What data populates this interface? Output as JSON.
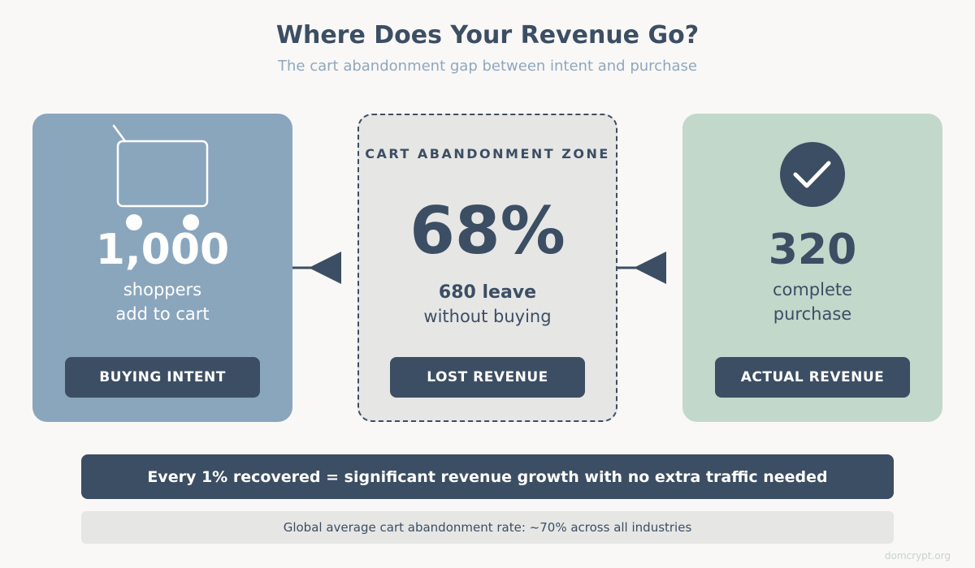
{
  "header": {
    "title": "Where Does Your Revenue Go?",
    "subtitle": "The cart abandonment gap between intent and purchase"
  },
  "cards": {
    "intent": {
      "icon": "shopping-cart-icon",
      "value": "1,000",
      "line1": "shoppers",
      "line2": "add to cart",
      "badge": "BUYING INTENT",
      "color": "#8aa6bd"
    },
    "lost": {
      "zone_label": "CART ABANDONMENT ZONE",
      "value": "68%",
      "leave_count": "680 leave",
      "leave_text": "without buying",
      "badge": "LOST REVENUE",
      "color": "#e6e6e5"
    },
    "actual": {
      "icon": "checkmark-icon",
      "value": "320",
      "line1": "complete",
      "line2": "purchase",
      "badge": "ACTUAL REVENUE",
      "color": "#c2d8cb"
    }
  },
  "banner": {
    "text": "Every 1% recovered = significant revenue growth with no extra traffic needed"
  },
  "footnote": {
    "text": "Global average cart abandonment rate: ~70% across all industries"
  },
  "watermark": "domcrypt.org",
  "colors": {
    "primary_dark": "#3c4e63",
    "background": "#f9f8f6",
    "subtitle": "#8fa7bf"
  }
}
